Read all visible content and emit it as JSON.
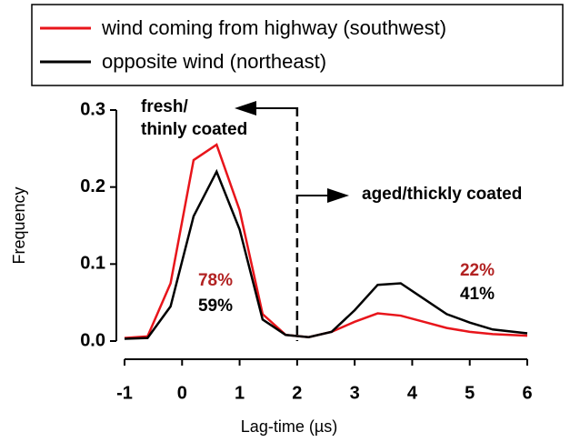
{
  "chart_data": {
    "type": "line",
    "x": [
      -1,
      -0.6,
      -0.2,
      0.2,
      0.6,
      1,
      1.4,
      1.8,
      2.2,
      2.6,
      3,
      3.4,
      3.8,
      4.2,
      4.6,
      5,
      5.4,
      6
    ],
    "series": [
      {
        "name": "wind coming from highway (southwest)",
        "color": "#e8151b",
        "values": [
          0.004,
          0.006,
          0.075,
          0.235,
          0.255,
          0.17,
          0.035,
          0.008,
          0.005,
          0.012,
          0.025,
          0.036,
          0.033,
          0.025,
          0.017,
          0.012,
          0.009,
          0.007
        ]
      },
      {
        "name": "opposite wind (northeast)",
        "color": "#000000",
        "values": [
          0.003,
          0.004,
          0.045,
          0.162,
          0.22,
          0.145,
          0.028,
          0.008,
          0.005,
          0.012,
          0.04,
          0.073,
          0.075,
          0.055,
          0.035,
          0.024,
          0.015,
          0.01
        ]
      }
    ],
    "xlabel": "Lag-time (µs)",
    "ylabel": "Frequency",
    "xlim": [
      -1,
      6
    ],
    "ylim": [
      0,
      0.3
    ],
    "xticks": [
      -1,
      0,
      1,
      2,
      3,
      4,
      5,
      6
    ],
    "yticks": [
      {
        "value": 0,
        "label": "0.0"
      },
      0.1,
      0.2,
      0.3
    ],
    "divider_x": 2,
    "annotations": [
      {
        "text": "fresh/",
        "color": "#000000"
      },
      {
        "text": "thinly coated",
        "color": "#000000"
      },
      {
        "text": "aged/thickly coated",
        "color": "#000000"
      },
      {
        "text": "78%",
        "color": "#b22222"
      },
      {
        "text": "59%",
        "color": "#000000"
      },
      {
        "text": "22%",
        "color": "#b22222"
      },
      {
        "text": "41%",
        "color": "#000000"
      }
    ]
  }
}
